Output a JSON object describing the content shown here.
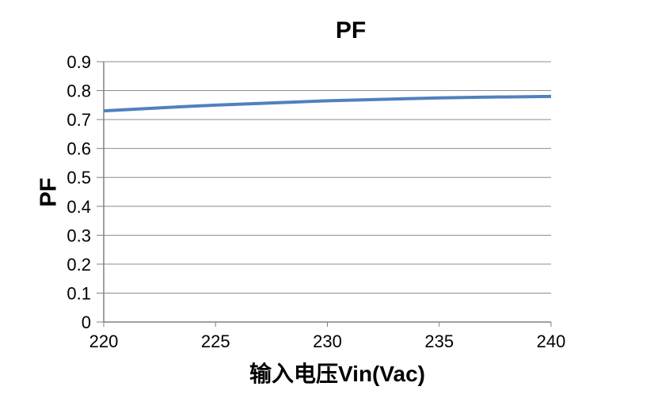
{
  "chart_data": {
    "type": "line",
    "title": "PF",
    "xlabel": "输入电压Vin(Vac)",
    "ylabel": "PF",
    "x": [
      220,
      225,
      230,
      235,
      240
    ],
    "series": [
      {
        "name": "PF",
        "color": "#4F81BD",
        "values": [
          0.73,
          0.75,
          0.765,
          0.775,
          0.78
        ]
      }
    ],
    "xlim": [
      220,
      240
    ],
    "ylim": [
      0,
      0.9
    ],
    "xticks": [
      220,
      225,
      230,
      235,
      240
    ],
    "xtick_labels": [
      "220",
      "225",
      "230",
      "235",
      "240"
    ],
    "yticks": [
      0,
      0.1,
      0.2,
      0.3,
      0.4,
      0.5,
      0.6,
      0.7,
      0.8,
      0.9
    ],
    "ytick_labels": [
      "0",
      "0.1",
      "0.2",
      "0.3",
      "0.4",
      "0.5",
      "0.6",
      "0.7",
      "0.8",
      "0.9"
    ],
    "grid": "horizontal-only",
    "smooth": true,
    "legend_position": "none",
    "line_width": 4,
    "colors": {
      "background": "#FFFFFF",
      "gridline": "#8C8C8C",
      "axis": "#808080",
      "text": "#000000"
    }
  }
}
